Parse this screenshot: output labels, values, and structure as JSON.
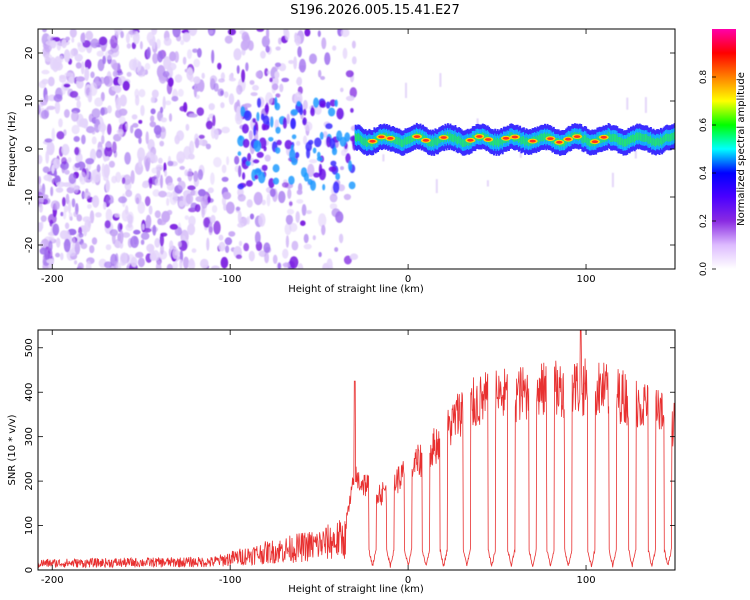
{
  "title": "S196.2026.005.15.41.E27",
  "chart_data": [
    {
      "type": "heatmap",
      "xlabel": "Height of straight line (km)",
      "ylabel": "Frequency (Hz)",
      "xlim": [
        -208,
        150
      ],
      "ylim": [
        -25,
        25
      ],
      "xticks": [
        -200,
        -100,
        0,
        100
      ],
      "yticks": [
        -20,
        -10,
        0,
        10,
        20
      ],
      "colorbar": {
        "label": "Normalized spectral amplitude",
        "range": [
          0,
          1
        ],
        "ticks": [
          "0.0",
          "0.2",
          "0.4",
          "0.6",
          "0.8"
        ],
        "colors": [
          "#ffffff",
          "#ddbbff",
          "#8a2be2",
          "#4b00ff",
          "#0000ff",
          "#00ffff",
          "#00ff00",
          "#ffff00",
          "#ff8000",
          "#ff0000",
          "#ff00aa"
        ]
      },
      "ridge": {
        "x_start": -30,
        "x_end": 150,
        "center_freq_hz": 2,
        "hot_spots_x": [
          -20,
          -15,
          -10,
          5,
          10,
          20,
          35,
          40,
          45,
          55,
          60,
          70,
          80,
          85,
          90,
          95,
          105,
          110
        ]
      },
      "noise": {
        "x_start": -208,
        "x_end": -30
      }
    },
    {
      "type": "line",
      "xlabel": "Height of straight line (km)",
      "ylabel": "SNR (10 * v/v)",
      "xlim": [
        -208,
        150
      ],
      "ylim": [
        0,
        540
      ],
      "xticks": [
        -200,
        -100,
        0,
        100
      ],
      "yticks": [
        0,
        100,
        200,
        300,
        400,
        500
      ],
      "color": "#e83030",
      "envelope": [
        {
          "x": -208,
          "y": 25
        },
        {
          "x": -110,
          "y": 30
        },
        {
          "x": -90,
          "y": 55
        },
        {
          "x": -70,
          "y": 75
        },
        {
          "x": -50,
          "y": 95
        },
        {
          "x": -35,
          "y": 120
        },
        {
          "x": -30,
          "y": 240
        },
        {
          "x": -15,
          "y": 200
        },
        {
          "x": 0,
          "y": 260
        },
        {
          "x": 10,
          "y": 300
        },
        {
          "x": 20,
          "y": 350
        },
        {
          "x": 30,
          "y": 420
        },
        {
          "x": 45,
          "y": 450
        },
        {
          "x": 60,
          "y": 460
        },
        {
          "x": 80,
          "y": 470
        },
        {
          "x": 95,
          "y": 480
        },
        {
          "x": 110,
          "y": 470
        },
        {
          "x": 130,
          "y": 440
        },
        {
          "x": 150,
          "y": 380
        }
      ],
      "spikes": [
        {
          "x": -30,
          "y": 425
        },
        {
          "x": 97,
          "y": 540
        }
      ],
      "dropouts_x": [
        -20,
        -10,
        0,
        10,
        20,
        33,
        47,
        58,
        70,
        80,
        90,
        103,
        115,
        126,
        137,
        146
      ]
    }
  ]
}
